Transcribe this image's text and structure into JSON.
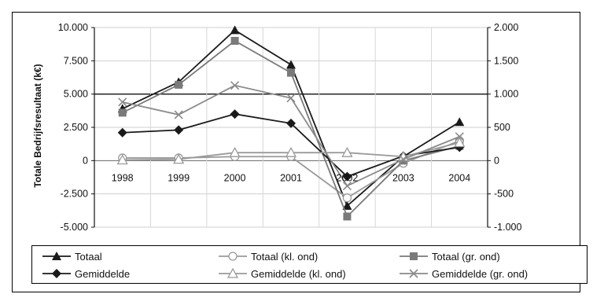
{
  "chart_data": {
    "type": "line",
    "ylabel_left": "Totale Bedrijfsresultaat (k€)",
    "categories": [
      "1998",
      "1999",
      "2000",
      "2001",
      "2002",
      "2003",
      "2004"
    ],
    "left_axis": {
      "ylim": [
        -5000,
        10000
      ],
      "ticks": [
        "10.000",
        "7.500",
        "5.000",
        "2.500",
        "0",
        "-2.500",
        "-5.000"
      ],
      "tick_values": [
        10000,
        7500,
        5000,
        2500,
        0,
        -2500,
        -5000
      ]
    },
    "right_axis": {
      "ylim": [
        -1000,
        2000
      ],
      "ticks": [
        "2.000",
        "1.500",
        "1.000",
        "500",
        "0",
        "-500",
        "-1.000"
      ],
      "tick_values": [
        2000,
        1500,
        1000,
        500,
        0,
        -500,
        -1000
      ]
    },
    "grid": true,
    "legend_position": "bottom",
    "series": [
      {
        "name": "Totaal",
        "axis": "left",
        "color": "#1a1a1a",
        "marker": "triangle-filled",
        "values": [
          3900,
          5900,
          9800,
          7200,
          -3400,
          300,
          2900
        ]
      },
      {
        "name": "Totaal (kl. ond)",
        "axis": "left",
        "color": "#9a9a9a",
        "marker": "circle-open",
        "values": [
          200,
          200,
          300,
          300,
          -2800,
          -200,
          1500
        ]
      },
      {
        "name": "Totaal (gr. ond)",
        "axis": "left",
        "color": "#7a7a7a",
        "marker": "square-filled",
        "values": [
          3600,
          5700,
          9000,
          6600,
          -4200,
          0,
          1100
        ]
      },
      {
        "name": "Gemiddelde",
        "axis": "right",
        "color": "#1a1a1a",
        "marker": "diamond-filled",
        "values": [
          420,
          460,
          700,
          560,
          -240,
          70,
          200
        ]
      },
      {
        "name": "Gemiddelde (kl. ond)",
        "axis": "right",
        "color": "#9a9a9a",
        "marker": "triangle-open",
        "values": [
          10,
          20,
          120,
          120,
          120,
          60,
          270
        ]
      },
      {
        "name": "Gemiddelde (gr. ond)",
        "axis": "right",
        "color": "#8a8a8a",
        "marker": "x",
        "values": [
          880,
          690,
          1130,
          940,
          -380,
          20,
          360
        ]
      }
    ]
  }
}
